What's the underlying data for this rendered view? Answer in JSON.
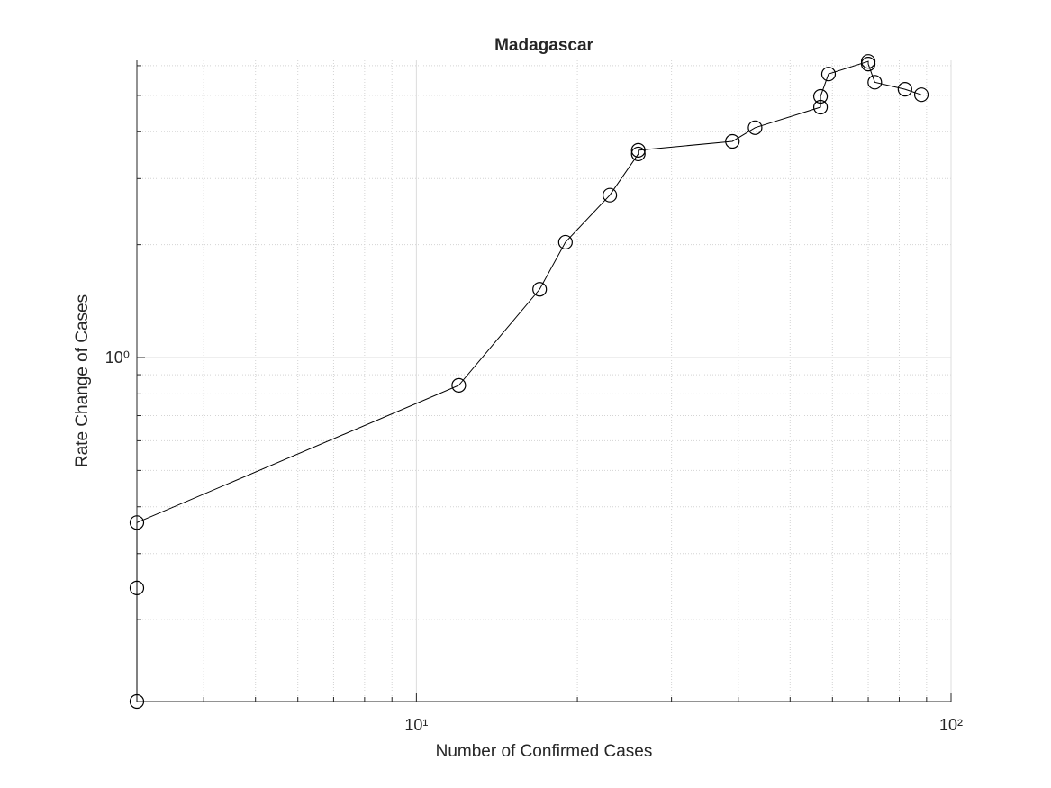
{
  "chart_data": {
    "type": "line",
    "title": "Madagascar",
    "x_label": "Number of Confirmed Cases",
    "y_label": "Rate Change of Cases",
    "x_scale": "log",
    "y_scale": "log",
    "grid": true,
    "marker": "circle",
    "color": "#000000",
    "xlim": [
      3,
      100
    ],
    "ylim": [
      0.121,
      6.2
    ],
    "xticks": [
      {
        "value": 10,
        "label": "10¹"
      },
      {
        "value": 100,
        "label": "10²"
      }
    ],
    "yticks": [
      {
        "value": 1,
        "label": "10⁰"
      }
    ],
    "xminorticks": [
      4,
      5,
      6,
      7,
      8,
      9,
      20,
      30,
      40,
      50,
      60,
      70,
      80,
      90
    ],
    "yminorticks": [
      0.2,
      0.3,
      0.4,
      0.5,
      0.6,
      0.7,
      0.8,
      0.9,
      2,
      3,
      4,
      5,
      6
    ],
    "series": [
      {
        "x": [
          3,
          3,
          3,
          12,
          17,
          19,
          23,
          26,
          26,
          39,
          43,
          57,
          57,
          59,
          70,
          70,
          72,
          82,
          88
        ],
        "values": [
          0.121,
          0.243,
          0.363,
          0.843,
          1.52,
          2.03,
          2.71,
          3.49,
          3.57,
          3.77,
          4.1,
          4.65,
          4.97,
          5.7,
          6.16,
          6.06,
          5.42,
          5.19,
          5.02
        ]
      }
    ]
  }
}
